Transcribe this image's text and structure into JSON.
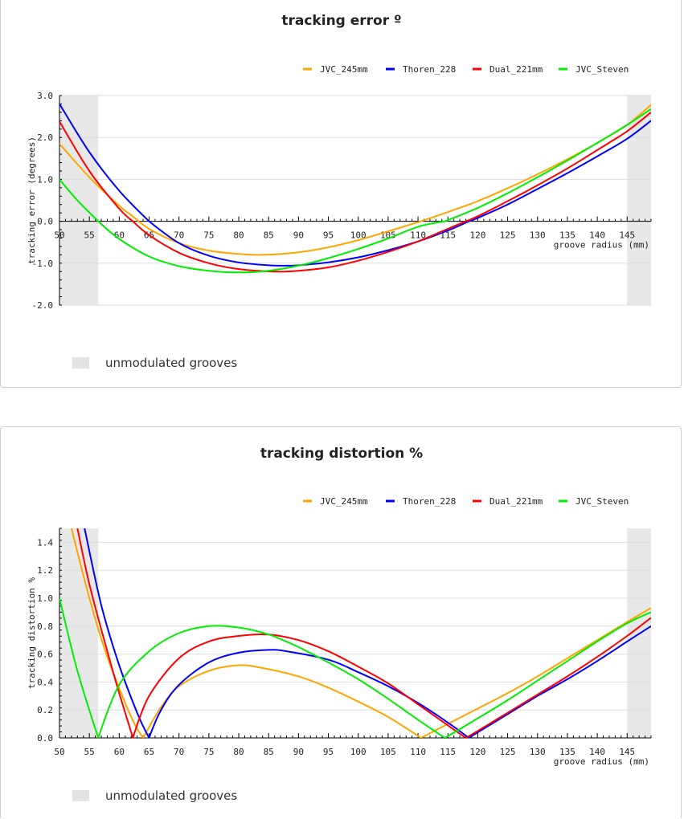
{
  "chart_data": [
    {
      "type": "line",
      "title": "tracking error º",
      "xlabel": "groove radius (mm)",
      "ylabel": "tracking error (degrees)",
      "xlim": [
        50,
        149
      ],
      "ylim": [
        -2.0,
        3.0
      ],
      "x_ticks": [
        "50",
        "55",
        "60",
        "65",
        "70",
        "75",
        "80",
        "85",
        "90",
        "95",
        "100",
        "105",
        "110",
        "115",
        "120",
        "125",
        "130",
        "135",
        "140",
        "145"
      ],
      "y_ticks": [
        "3.0",
        "2.0",
        "1.0",
        "0.0",
        "-1.0",
        "-2.0"
      ],
      "grid": true,
      "legend_position": "top-right",
      "shaded_regions": [
        [
          50,
          56.5
        ],
        [
          145,
          149
        ]
      ],
      "shaded_label": "unmodulated grooves",
      "series": [
        {
          "name": "JVC_245mm",
          "color": "#ffa500",
          "x": [
            50,
            55,
            60,
            62,
            65,
            70,
            75,
            80,
            84,
            90,
            95,
            100,
            105,
            110.5,
            115,
            120,
            125,
            130,
            135,
            140,
            145,
            149
          ],
          "y": [
            1.85,
            1.05,
            0.37,
            0.15,
            -0.18,
            -0.52,
            -0.7,
            -0.78,
            -0.8,
            -0.74,
            -0.62,
            -0.45,
            -0.24,
            0.0,
            0.22,
            0.48,
            0.79,
            1.12,
            1.48,
            1.87,
            2.3,
            2.78
          ]
        },
        {
          "name": "Thoren_228",
          "color": "#0000ff",
          "x": [
            50,
            55,
            60,
            65,
            70,
            75,
            80,
            85,
            88,
            90,
            95,
            100,
            105,
            110,
            115,
            118.5,
            120,
            125,
            130,
            135,
            140,
            145,
            149
          ],
          "y": [
            2.8,
            1.65,
            0.73,
            0.0,
            -0.52,
            -0.82,
            -0.98,
            -1.05,
            -1.06,
            -1.05,
            -0.98,
            -0.86,
            -0.69,
            -0.48,
            -0.22,
            0.0,
            0.08,
            0.4,
            0.77,
            1.15,
            1.55,
            1.97,
            2.4
          ]
        },
        {
          "name": "Dual_221mm",
          "color": "#ff0000",
          "x": [
            50,
            55,
            60,
            62.3,
            65,
            70,
            75,
            80,
            86,
            90,
            95,
            100,
            105,
            110,
            115,
            118,
            120,
            125,
            130,
            135,
            140,
            145,
            149
          ],
          "y": [
            2.38,
            1.2,
            0.3,
            0.0,
            -0.33,
            -0.75,
            -1.0,
            -1.14,
            -1.2,
            -1.18,
            -1.1,
            -0.94,
            -0.73,
            -0.48,
            -0.18,
            0.0,
            0.12,
            0.48,
            0.86,
            1.26,
            1.7,
            2.15,
            2.6
          ]
        },
        {
          "name": "JVC_Steven",
          "color": "#00ee00",
          "x": [
            50,
            53,
            56.5,
            60,
            65,
            70,
            75,
            80,
            85,
            90,
            95,
            100,
            105,
            110,
            114.5,
            120,
            125,
            130,
            135,
            140,
            145,
            149
          ],
          "y": [
            1.0,
            0.5,
            0.0,
            -0.42,
            -0.84,
            -1.07,
            -1.18,
            -1.22,
            -1.18,
            -1.06,
            -0.88,
            -0.66,
            -0.41,
            -0.13,
            0.0,
            0.32,
            0.67,
            1.05,
            1.45,
            1.87,
            2.3,
            2.68
          ]
        }
      ]
    },
    {
      "type": "line",
      "title": "tracking distortion %",
      "xlabel": "groove radius (mm)",
      "ylabel": "tracking distortion %",
      "xlim": [
        50,
        149
      ],
      "ylim": [
        0.0,
        1.5
      ],
      "x_ticks": [
        "50",
        "55",
        "60",
        "65",
        "70",
        "75",
        "80",
        "85",
        "90",
        "95",
        "100",
        "105",
        "110",
        "115",
        "120",
        "125",
        "130",
        "135",
        "140",
        "145"
      ],
      "y_ticks": [
        "0.0",
        "0.2",
        "0.4",
        "0.6",
        "0.8",
        "1.0",
        "1.2",
        "1.4"
      ],
      "grid": true,
      "legend_position": "top-right",
      "shaded_regions": [
        [
          50,
          56.5
        ],
        [
          145,
          149
        ]
      ],
      "shaded_label": "unmodulated grooves",
      "series": [
        {
          "name": "JVC_245mm",
          "color": "#ffa500",
          "x": [
            52,
            55,
            58,
            62,
            64,
            67,
            70,
            75,
            80,
            84,
            90,
            95,
            100,
            105,
            110.5,
            115,
            120,
            125,
            130,
            135,
            140,
            145,
            149
          ],
          "y": [
            1.5,
            1.0,
            0.58,
            0.15,
            0.0,
            0.22,
            0.37,
            0.48,
            0.52,
            0.5,
            0.44,
            0.36,
            0.26,
            0.15,
            0.0,
            0.1,
            0.21,
            0.32,
            0.44,
            0.57,
            0.7,
            0.83,
            0.93
          ]
        },
        {
          "name": "Thoren_228",
          "color": "#0000ff",
          "x": [
            54.2,
            57,
            60,
            63,
            65,
            67,
            70,
            75,
            80,
            85,
            88,
            95,
            100,
            105,
            110,
            115,
            118.5,
            120,
            125,
            130,
            135,
            140,
            145,
            149
          ],
          "y": [
            1.5,
            0.95,
            0.52,
            0.18,
            0.0,
            0.2,
            0.38,
            0.54,
            0.61,
            0.63,
            0.62,
            0.56,
            0.47,
            0.37,
            0.25,
            0.11,
            0.0,
            0.04,
            0.17,
            0.3,
            0.42,
            0.55,
            0.69,
            0.8
          ]
        },
        {
          "name": "Dual_221mm",
          "color": "#ff0000",
          "x": [
            53,
            55,
            58,
            60,
            62.3,
            65,
            70,
            75,
            80,
            85,
            90,
            95,
            100,
            105,
            110,
            115,
            118,
            120,
            125,
            130,
            135,
            140,
            145,
            149
          ],
          "y": [
            1.5,
            1.1,
            0.62,
            0.32,
            0.0,
            0.3,
            0.57,
            0.69,
            0.73,
            0.74,
            0.7,
            0.62,
            0.51,
            0.39,
            0.24,
            0.09,
            0.0,
            0.05,
            0.18,
            0.31,
            0.44,
            0.58,
            0.73,
            0.86
          ]
        },
        {
          "name": "JVC_Steven",
          "color": "#00ee00",
          "x": [
            50,
            53,
            56.5,
            60,
            65,
            70,
            75,
            80,
            85,
            90,
            95,
            100,
            105,
            110,
            114.5,
            120,
            125,
            130,
            135,
            140,
            145,
            149
          ],
          "y": [
            1.0,
            0.48,
            0.0,
            0.38,
            0.62,
            0.75,
            0.8,
            0.79,
            0.74,
            0.65,
            0.54,
            0.42,
            0.28,
            0.13,
            0.0,
            0.14,
            0.27,
            0.41,
            0.55,
            0.69,
            0.82,
            0.9
          ]
        }
      ]
    }
  ]
}
